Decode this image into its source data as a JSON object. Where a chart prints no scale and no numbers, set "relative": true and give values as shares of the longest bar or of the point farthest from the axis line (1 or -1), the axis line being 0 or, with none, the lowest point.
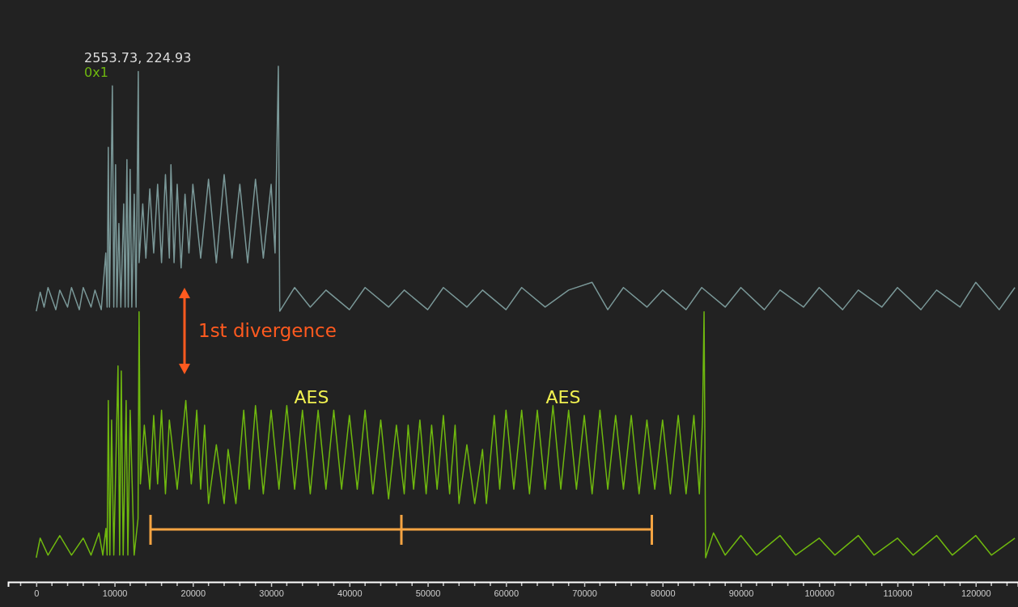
{
  "chart_data": {
    "type": "line",
    "relative": true,
    "legend": "top left",
    "tick_labels": "x",
    "xlim": [
      -3600,
      125400
    ],
    "xticks": [
      {
        "value": -2000,
        "label": null
      },
      0,
      {
        "value": 2000,
        "label": null
      },
      {
        "value": 4000,
        "label": null
      },
      {
        "value": 6000,
        "label": null
      },
      {
        "value": 8000,
        "label": null
      },
      10000,
      {
        "value": 12000,
        "label": null
      },
      {
        "value": 14000,
        "label": null
      },
      {
        "value": 16000,
        "label": null
      },
      {
        "value": 18000,
        "label": null
      },
      20000,
      {
        "value": 22000,
        "label": null
      },
      {
        "value": 24000,
        "label": null
      },
      {
        "value": 26000,
        "label": null
      },
      {
        "value": 28000,
        "label": null
      },
      30000,
      {
        "value": 32000,
        "label": null
      },
      {
        "value": 34000,
        "label": null
      },
      {
        "value": 36000,
        "label": null
      },
      {
        "value": 38000,
        "label": null
      },
      40000,
      {
        "value": 42000,
        "label": null
      },
      {
        "value": 44000,
        "label": null
      },
      {
        "value": 46000,
        "label": null
      },
      {
        "value": 48000,
        "label": null
      },
      50000,
      {
        "value": 52000,
        "label": null
      },
      {
        "value": 54000,
        "label": null
      },
      {
        "value": 56000,
        "label": null
      },
      {
        "value": 58000,
        "label": null
      },
      60000,
      {
        "value": 62000,
        "label": null
      },
      {
        "value": 64000,
        "label": null
      },
      {
        "value": 66000,
        "label": null
      },
      {
        "value": 68000,
        "label": null
      },
      70000,
      {
        "value": 72000,
        "label": null
      },
      {
        "value": 74000,
        "label": null
      },
      {
        "value": 76000,
        "label": null
      },
      {
        "value": 78000,
        "label": null
      },
      80000,
      {
        "value": 82000,
        "label": null
      },
      {
        "value": 84000,
        "label": null
      },
      {
        "value": 86000,
        "label": null
      },
      {
        "value": 88000,
        "label": null
      },
      90000,
      {
        "value": 92000,
        "label": null
      },
      {
        "value": 94000,
        "label": null
      },
      {
        "value": 96000,
        "label": null
      },
      {
        "value": 98000,
        "label": null
      },
      100000,
      {
        "value": 102000,
        "label": null
      },
      {
        "value": 104000,
        "label": null
      },
      {
        "value": 106000,
        "label": null
      },
      {
        "value": 108000,
        "label": null
      },
      110000,
      {
        "value": 112000,
        "label": null
      },
      {
        "value": 114000,
        "label": null
      },
      {
        "value": 116000,
        "label": null
      },
      {
        "value": 118000,
        "label": null
      },
      120000,
      {
        "value": 122000,
        "label": null
      },
      {
        "value": 124000,
        "label": null
      }
    ],
    "series": [
      {
        "color": "#7a9898",
        "x": [
          0,
          500,
          1000,
          1500,
          2500,
          3000,
          4000,
          4500,
          5500,
          6000,
          7000,
          7500,
          8300,
          8880,
          9050,
          9200,
          9350,
          9720,
          9900,
          10130,
          10300,
          10550,
          10800,
          11170,
          11350,
          11580,
          11750,
          11990,
          12200,
          12510,
          12750,
          13030,
          13130,
          13600,
          14000,
          14500,
          15000,
          15500,
          16000,
          16500,
          17000,
          17200,
          17600,
          18000,
          18500,
          19000,
          19500,
          20000,
          21000,
          22000,
          23000,
          24000,
          25000,
          26000,
          27000,
          28000,
          29000,
          30000,
          30500,
          30920,
          31100,
          33000,
          35000,
          37000,
          40000,
          42000,
          45000,
          47000,
          50000,
          52000,
          55000,
          57000,
          60000,
          62000,
          65000,
          68000,
          71000,
          73000,
          75000,
          78000,
          80000,
          83000,
          85000,
          88000,
          90000,
          93000,
          95000,
          98000,
          100000,
          103000,
          105000,
          108000,
          110000,
          113000,
          115000,
          118000,
          120000,
          123000,
          125000
        ],
        "values": [
          0.525,
          0.562,
          0.533,
          0.571,
          0.528,
          0.566,
          0.533,
          0.571,
          0.528,
          0.571,
          0.533,
          0.566,
          0.528,
          0.638,
          0.533,
          0.843,
          0.533,
          0.962,
          0.533,
          0.809,
          0.533,
          0.695,
          0.533,
          0.733,
          0.533,
          0.819,
          0.533,
          0.8,
          0.533,
          0.752,
          0.533,
          0.99,
          0.619,
          0.733,
          0.628,
          0.762,
          0.638,
          0.771,
          0.619,
          0.79,
          0.628,
          0.809,
          0.619,
          0.771,
          0.609,
          0.752,
          0.638,
          0.771,
          0.628,
          0.781,
          0.619,
          0.79,
          0.628,
          0.771,
          0.619,
          0.781,
          0.628,
          0.771,
          0.638,
          1.0,
          0.525,
          0.571,
          0.533,
          0.566,
          0.528,
          0.571,
          0.533,
          0.566,
          0.528,
          0.571,
          0.533,
          0.566,
          0.528,
          0.571,
          0.533,
          0.566,
          0.581,
          0.528,
          0.571,
          0.533,
          0.566,
          0.528,
          0.571,
          0.533,
          0.571,
          0.528,
          0.566,
          0.533,
          0.571,
          0.528,
          0.566,
          0.533,
          0.571,
          0.528,
          0.566,
          0.533,
          0.581,
          0.528,
          0.571
        ]
      },
      {
        "name": "0x1",
        "color": "#6fb80f",
        "x": [
          0,
          500,
          1500,
          3000,
          4500,
          6000,
          7000,
          8000,
          8500,
          8900,
          9050,
          9200,
          9400,
          9620,
          9900,
          10440,
          10650,
          10860,
          11100,
          11480,
          11700,
          11990,
          12500,
          13000,
          13130,
          13300,
          13800,
          14500,
          15000,
          15500,
          16000,
          16500,
          17000,
          18000,
          19100,
          19800,
          20500,
          21000,
          21500,
          22000,
          23000,
          24000,
          24500,
          25500,
          26500,
          27200,
          28000,
          29000,
          30000,
          31000,
          32000,
          33000,
          34000,
          35000,
          36000,
          37000,
          38000,
          39000,
          40000,
          41000,
          42000,
          43000,
          44000,
          45000,
          46000,
          47000,
          47500,
          48200,
          49000,
          49800,
          50500,
          51200,
          52000,
          52800,
          53500,
          54000,
          55000,
          56000,
          57000,
          57500,
          58500,
          59200,
          60000,
          61000,
          62000,
          63000,
          64000,
          65000,
          66000,
          67000,
          68000,
          69000,
          70000,
          71000,
          72000,
          73000,
          74000,
          75000,
          76000,
          77000,
          78000,
          79000,
          80000,
          81000,
          82000,
          83000,
          84000,
          84700,
          85100,
          85300,
          85500,
          86500,
          88000,
          90000,
          92000,
          95000,
          97000,
          100000,
          102000,
          105000,
          107000,
          110000,
          112000,
          115000,
          117000,
          120000,
          122000,
          125000
        ],
        "values": [
          0.047,
          0.085,
          0.052,
          0.09,
          0.052,
          0.085,
          0.052,
          0.095,
          0.052,
          0.104,
          0.052,
          0.352,
          0.052,
          0.314,
          0.052,
          0.419,
          0.052,
          0.409,
          0.052,
          0.352,
          0.052,
          0.333,
          0.052,
          0.123,
          0.524,
          0.19,
          0.304,
          0.18,
          0.323,
          0.19,
          0.333,
          0.171,
          0.314,
          0.18,
          0.352,
          0.19,
          0.333,
          0.18,
          0.304,
          0.152,
          0.266,
          0.152,
          0.257,
          0.152,
          0.333,
          0.18,
          0.342,
          0.171,
          0.333,
          0.18,
          0.342,
          0.18,
          0.333,
          0.171,
          0.333,
          0.18,
          0.333,
          0.18,
          0.323,
          0.18,
          0.333,
          0.171,
          0.314,
          0.161,
          0.304,
          0.171,
          0.304,
          0.18,
          0.314,
          0.171,
          0.304,
          0.18,
          0.323,
          0.171,
          0.304,
          0.152,
          0.266,
          0.152,
          0.257,
          0.152,
          0.323,
          0.18,
          0.333,
          0.18,
          0.333,
          0.171,
          0.333,
          0.18,
          0.342,
          0.18,
          0.333,
          0.18,
          0.323,
          0.171,
          0.333,
          0.18,
          0.323,
          0.18,
          0.323,
          0.171,
          0.314,
          0.18,
          0.314,
          0.171,
          0.323,
          0.171,
          0.323,
          0.171,
          0.314,
          0.524,
          0.047,
          0.095,
          0.052,
          0.09,
          0.052,
          0.09,
          0.052,
          0.085,
          0.052,
          0.09,
          0.052,
          0.085,
          0.052,
          0.09,
          0.052,
          0.09,
          0.052,
          0.085
        ]
      }
    ],
    "annotations": [
      "2553.73, 224.93",
      "1st divergence",
      "AES",
      "AES"
    ]
  }
}
